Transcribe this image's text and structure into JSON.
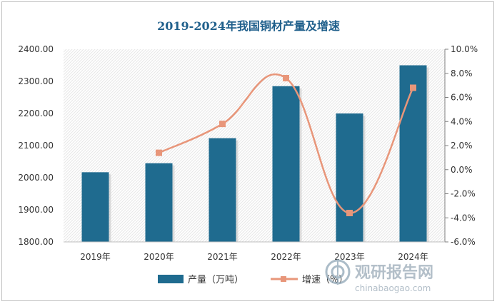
{
  "chart_data": {
    "type": "bar",
    "title": "2019-2024年我国铜材产量及增速",
    "categories": [
      "2019年",
      "2020年",
      "2021年",
      "2022年",
      "2023年",
      "2024年"
    ],
    "series": [
      {
        "name": "产量（万吨）",
        "kind": "bar",
        "axis": "left",
        "values": [
          2017.0,
          2045.0,
          2123.0,
          2285.0,
          2200.0,
          2350.0
        ]
      },
      {
        "name": "增速（%）",
        "kind": "line",
        "axis": "right",
        "values": [
          null,
          1.4,
          3.8,
          7.6,
          -3.6,
          6.8
        ]
      }
    ],
    "left_axis": {
      "min": 1800,
      "max": 2400,
      "tick_labels": [
        "1800.00",
        "1900.00",
        "2000.00",
        "2100.00",
        "2200.00",
        "2300.00",
        "2400.00"
      ]
    },
    "right_axis": {
      "min": -6,
      "max": 10,
      "tick_labels": [
        "-6.0%",
        "-4.0%",
        "-2.0%",
        "0.0%",
        "2.0%",
        "4.0%",
        "6.0%",
        "8.0%",
        "10.0%"
      ]
    },
    "legend_position": "bottom",
    "colors": {
      "bar": "#1f6b8f",
      "line": "#e8967a",
      "marker": "#e8967a",
      "title": "#1f5f8b"
    }
  },
  "watermark": {
    "brand": "观研报告网",
    "url": "chinabaogao.com"
  }
}
